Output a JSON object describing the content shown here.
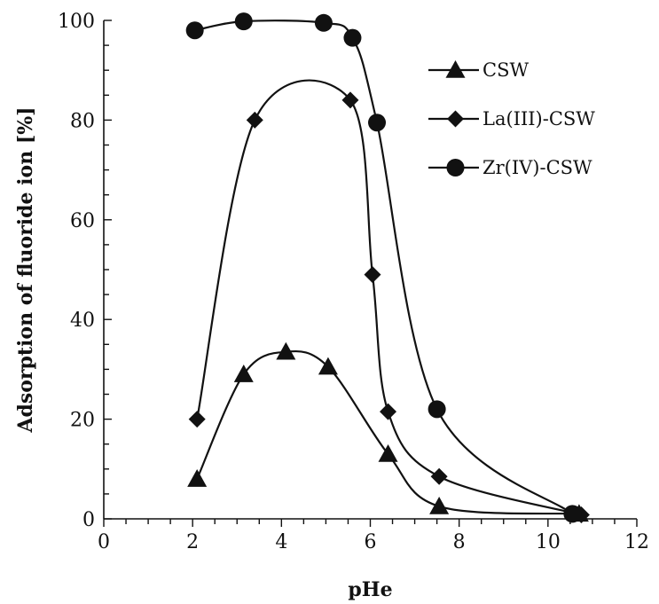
{
  "chart_data": {
    "type": "line",
    "title": "",
    "xlabel": "pHe",
    "ylabel": "Adsorption of fluoride ion [%]",
    "xlim": [
      0,
      12
    ],
    "ylim": [
      0,
      100
    ],
    "xticks": [
      0,
      2,
      4,
      6,
      8,
      10,
      12
    ],
    "yticks": [
      0,
      20,
      40,
      60,
      80,
      100
    ],
    "grid": false,
    "legend_position": "top-right",
    "series": [
      {
        "name": "CSW",
        "marker": "triangle",
        "points": [
          {
            "x": 2.1,
            "y": 8
          },
          {
            "x": 3.15,
            "y": 29
          },
          {
            "x": 4.1,
            "y": 33.5
          },
          {
            "x": 5.05,
            "y": 30.5
          },
          {
            "x": 6.4,
            "y": 13
          },
          {
            "x": 7.55,
            "y": 2.5
          },
          {
            "x": 10.7,
            "y": 1
          }
        ]
      },
      {
        "name": "La(III)-CSW",
        "marker": "diamond",
        "points": [
          {
            "x": 2.1,
            "y": 20
          },
          {
            "x": 3.4,
            "y": 80
          },
          {
            "x": 5.55,
            "y": 84
          },
          {
            "x": 6.05,
            "y": 49
          },
          {
            "x": 6.4,
            "y": 21.5
          },
          {
            "x": 7.55,
            "y": 8.5
          },
          {
            "x": 10.75,
            "y": 0.8
          }
        ]
      },
      {
        "name": "Zr(IV)-CSW",
        "marker": "circle",
        "points": [
          {
            "x": 2.05,
            "y": 98
          },
          {
            "x": 3.15,
            "y": 99.8
          },
          {
            "x": 4.95,
            "y": 99.5
          },
          {
            "x": 5.6,
            "y": 96.5
          },
          {
            "x": 6.15,
            "y": 79.5
          },
          {
            "x": 7.5,
            "y": 22
          },
          {
            "x": 10.55,
            "y": 1
          }
        ]
      }
    ]
  }
}
